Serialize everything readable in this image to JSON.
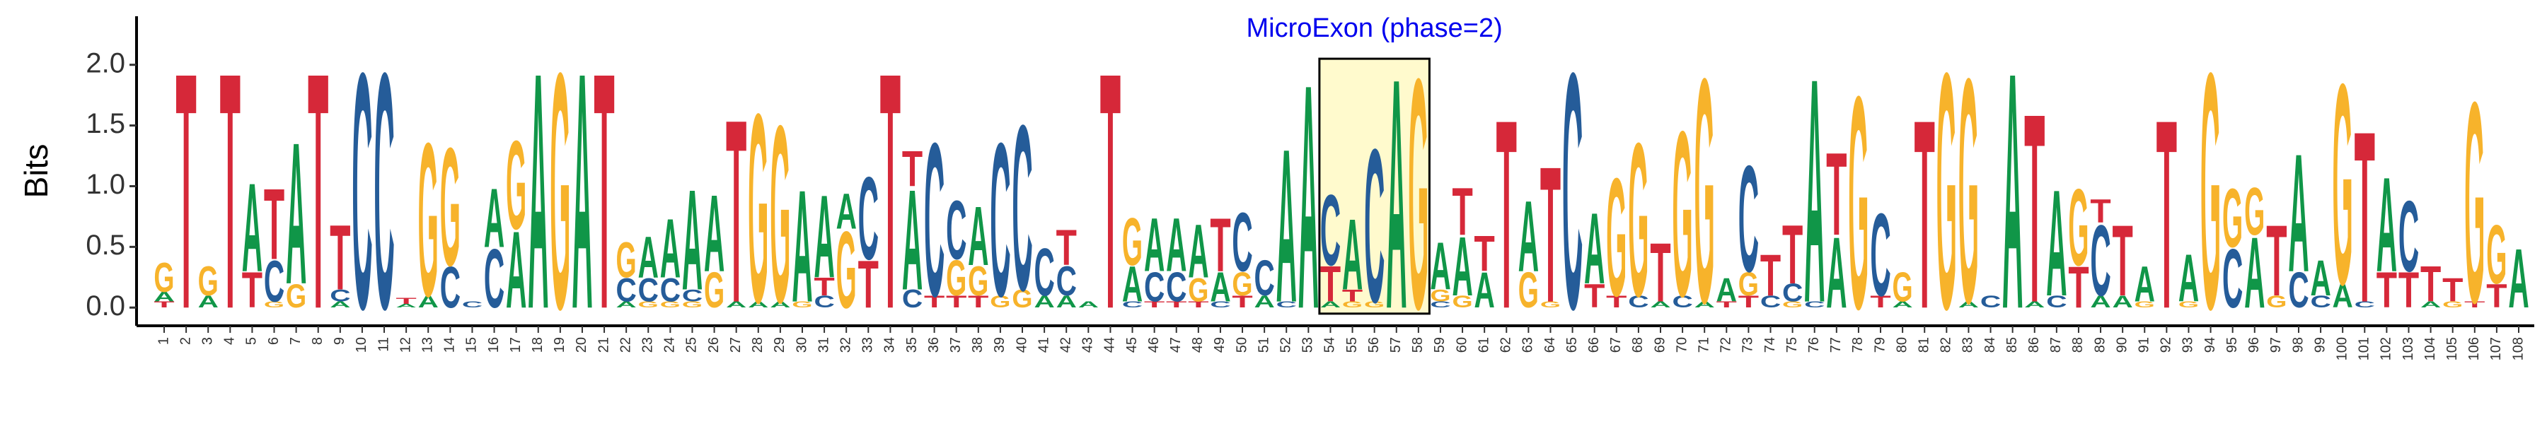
{
  "chart_data": {
    "type": "logo",
    "ylabel": "Bits",
    "ylim": [
      -0.15,
      2.4
    ],
    "yticks": [
      {
        "value": 0,
        "label": "0.0"
      },
      {
        "value": 0.5,
        "label": "0.5"
      },
      {
        "value": 1,
        "label": "1.0"
      },
      {
        "value": 1.5,
        "label": "1.5"
      },
      {
        "value": 2,
        "label": "2.0"
      }
    ],
    "colors": {
      "A": "#109648",
      "C": "#255c99",
      "G": "#f7b32b",
      "T": "#d62839"
    },
    "annotation": {
      "text": "MicroExon (phase=2)",
      "start": 54,
      "end": 58,
      "color": "#0000ee",
      "fill": "#fffacd"
    },
    "categories": [
      "1",
      "2",
      "3",
      "4",
      "5",
      "6",
      "7",
      "8",
      "9",
      "10",
      "11",
      "12",
      "13",
      "14",
      "15",
      "16",
      "17",
      "18",
      "19",
      "20",
      "21",
      "22",
      "23",
      "24",
      "25",
      "26",
      "27",
      "28",
      "29",
      "30",
      "31",
      "32",
      "33",
      "34",
      "35",
      "36",
      "37",
      "38",
      "39",
      "40",
      "41",
      "42",
      "43",
      "44",
      "45",
      "46",
      "47",
      "48",
      "49",
      "50",
      "51",
      "52",
      "53",
      "54",
      "55",
      "56",
      "57",
      "58",
      "59",
      "60",
      "61",
      "62",
      "63",
      "64",
      "65",
      "66",
      "67",
      "68",
      "69",
      "70",
      "71",
      "72",
      "73",
      "74",
      "75",
      "76",
      "77",
      "78",
      "79",
      "80",
      "81",
      "82",
      "83",
      "84",
      "85",
      "86",
      "87",
      "88",
      "89",
      "90",
      "91",
      "92",
      "93",
      "94",
      "95",
      "96",
      "97",
      "98",
      "99",
      "100",
      "101",
      "102",
      "103",
      "104",
      "105",
      "106",
      "107",
      "108"
    ],
    "stacks": [
      [
        [
          "T",
          0.05
        ],
        [
          "A",
          0.08
        ],
        [
          "G",
          0.25
        ]
      ],
      [
        [
          "T",
          2.0
        ]
      ],
      [
        [
          "A",
          0.1
        ],
        [
          "G",
          0.25
        ]
      ],
      [
        [
          "T",
          2.0
        ]
      ],
      [
        [
          "T",
          0.3
        ],
        [
          "A",
          0.75
        ]
      ],
      [
        [
          "G",
          0.05
        ],
        [
          "C",
          0.35
        ],
        [
          "T",
          0.6
        ]
      ],
      [
        [
          "G",
          0.2
        ],
        [
          "A",
          1.2
        ]
      ],
      [
        [
          "T",
          2.0
        ]
      ],
      [
        [
          "A",
          0.05
        ],
        [
          "C",
          0.1
        ],
        [
          "T",
          0.55
        ]
      ],
      [
        [
          "C",
          2.0
        ]
      ],
      [
        [
          "C",
          2.0
        ]
      ],
      [
        [
          "A",
          0.03
        ],
        [
          "T",
          0.05
        ]
      ],
      [
        [
          "A",
          0.1
        ],
        [
          "G",
          1.3
        ]
      ],
      [
        [
          "C",
          0.35
        ],
        [
          "G",
          1.0
        ]
      ],
      [
        [
          "C",
          0.05
        ]
      ],
      [
        [
          "C",
          0.5
        ],
        [
          "A",
          0.5
        ]
      ],
      [
        [
          "A",
          0.65
        ],
        [
          "G",
          0.75
        ]
      ],
      [
        [
          "A",
          2.0
        ]
      ],
      [
        [
          "G",
          2.0
        ]
      ],
      [
        [
          "A",
          2.0
        ]
      ],
      [
        [
          "T",
          2.0
        ]
      ],
      [
        [
          "A",
          0.05
        ],
        [
          "C",
          0.2
        ],
        [
          "G",
          0.3
        ]
      ],
      [
        [
          "G",
          0.05
        ],
        [
          "C",
          0.2
        ],
        [
          "A",
          0.35
        ]
      ],
      [
        [
          "G",
          0.05
        ],
        [
          "C",
          0.2
        ],
        [
          "A",
          0.5
        ]
      ],
      [
        [
          "G",
          0.05
        ],
        [
          "C",
          0.1
        ],
        [
          "A",
          0.85
        ]
      ],
      [
        [
          "G",
          0.3
        ],
        [
          "A",
          0.65
        ]
      ],
      [
        [
          "A",
          0.05
        ],
        [
          "T",
          1.55
        ]
      ],
      [
        [
          "A",
          0.05
        ],
        [
          "G",
          1.6
        ]
      ],
      [
        [
          "A",
          0.05
        ],
        [
          "G",
          1.5
        ]
      ],
      [
        [
          "G",
          0.05
        ],
        [
          "A",
          0.95
        ]
      ],
      [
        [
          "C",
          0.1
        ],
        [
          "T",
          0.15
        ],
        [
          "A",
          0.7
        ]
      ],
      [
        [
          "G",
          0.65
        ],
        [
          "A",
          0.3
        ]
      ],
      [
        [
          "T",
          0.4
        ],
        [
          "C",
          0.7
        ]
      ],
      [
        [
          "T",
          2.0
        ]
      ],
      [
        [
          "C",
          0.15
        ],
        [
          "A",
          0.85
        ],
        [
          "T",
          0.3
        ]
      ],
      [
        [
          "T",
          0.1
        ],
        [
          "C",
          1.3
        ]
      ],
      [
        [
          "T",
          0.1
        ],
        [
          "G",
          0.3
        ],
        [
          "C",
          0.5
        ]
      ],
      [
        [
          "T",
          0.1
        ],
        [
          "G",
          0.25
        ],
        [
          "A",
          0.5
        ]
      ],
      [
        [
          "G",
          0.1
        ],
        [
          "C",
          1.3
        ]
      ],
      [
        [
          "G",
          0.15
        ],
        [
          "C",
          1.4
        ]
      ],
      [
        [
          "A",
          0.1
        ],
        [
          "C",
          0.4
        ]
      ],
      [
        [
          "A",
          0.1
        ],
        [
          "C",
          0.25
        ],
        [
          "T",
          0.3
        ]
      ],
      [
        [
          "A",
          0.05
        ]
      ],
      [
        [
          "T",
          2.0
        ]
      ],
      [
        [
          "C",
          0.05
        ],
        [
          "A",
          0.3
        ],
        [
          "G",
          0.4
        ]
      ],
      [
        [
          "T",
          0.05
        ],
        [
          "C",
          0.25
        ],
        [
          "A",
          0.45
        ]
      ],
      [
        [
          "T",
          0.05
        ],
        [
          "C",
          0.25
        ],
        [
          "A",
          0.45
        ]
      ],
      [
        [
          "T",
          0.05
        ],
        [
          "G",
          0.2
        ],
        [
          "A",
          0.45
        ]
      ],
      [
        [
          "C",
          0.05
        ],
        [
          "A",
          0.25
        ],
        [
          "T",
          0.45
        ]
      ],
      [
        [
          "T",
          0.1
        ],
        [
          "G",
          0.2
        ],
        [
          "C",
          0.5
        ]
      ],
      [
        [
          "A",
          0.1
        ],
        [
          "C",
          0.3
        ]
      ],
      [
        [
          "C",
          0.05
        ],
        [
          "A",
          1.3
        ]
      ],
      [
        [
          "A",
          1.9
        ]
      ],
      [
        [
          "A",
          0.05
        ],
        [
          "T",
          0.3
        ],
        [
          "C",
          0.6
        ]
      ],
      [
        [
          "G",
          0.05
        ],
        [
          "T",
          0.1
        ],
        [
          "A",
          0.6
        ]
      ],
      [
        [
          "G",
          0.05
        ],
        [
          "C",
          1.3
        ]
      ],
      [
        [
          "A",
          1.95
        ]
      ],
      [
        [
          "G",
          1.95
        ]
      ],
      [
        [
          "C",
          0.05
        ],
        [
          "G",
          0.1
        ],
        [
          "A",
          0.4
        ]
      ],
      [
        [
          "G",
          0.1
        ],
        [
          "A",
          0.5
        ],
        [
          "T",
          0.4
        ]
      ],
      [
        [
          "A",
          0.3
        ],
        [
          "T",
          0.3
        ]
      ],
      [
        [
          "T",
          1.6
        ]
      ],
      [
        [
          "G",
          0.3
        ],
        [
          "A",
          0.6
        ]
      ],
      [
        [
          "G",
          0.05
        ],
        [
          "T",
          1.15
        ]
      ],
      [
        [
          "C",
          2.0
        ]
      ],
      [
        [
          "T",
          0.2
        ],
        [
          "A",
          0.6
        ]
      ],
      [
        [
          "T",
          0.1
        ],
        [
          "G",
          1.0
        ]
      ],
      [
        [
          "C",
          0.1
        ],
        [
          "G",
          1.3
        ]
      ],
      [
        [
          "A",
          0.05
        ],
        [
          "T",
          0.5
        ]
      ],
      [
        [
          "C",
          0.1
        ],
        [
          "G",
          1.4
        ]
      ],
      [
        [
          "A",
          0.05
        ],
        [
          "G",
          1.9
        ]
      ],
      [
        [
          "T",
          0.05
        ],
        [
          "A",
          0.2
        ]
      ],
      [
        [
          "T",
          0.1
        ],
        [
          "G",
          0.2
        ],
        [
          "C",
          0.9
        ]
      ],
      [
        [
          "C",
          0.1
        ],
        [
          "T",
          0.35
        ]
      ],
      [
        [
          "G",
          0.05
        ],
        [
          "C",
          0.15
        ],
        [
          "T",
          0.5
        ]
      ],
      [
        [
          "C",
          0.05
        ],
        [
          "A",
          1.9
        ]
      ],
      [
        [
          "A",
          0.6
        ],
        [
          "T",
          0.7
        ]
      ],
      [
        [
          "G",
          1.8
        ]
      ],
      [
        [
          "T",
          0.1
        ],
        [
          "C",
          0.7
        ]
      ],
      [
        [
          "A",
          0.05
        ],
        [
          "G",
          0.25
        ]
      ],
      [
        [
          "T",
          1.6
        ]
      ],
      [
        [
          "G",
          2.0
        ]
      ],
      [
        [
          "A",
          0.05
        ],
        [
          "G",
          1.9
        ]
      ],
      [
        [
          "C",
          0.1
        ]
      ],
      [
        [
          "A",
          2.0
        ]
      ],
      [
        [
          "A",
          0.05
        ],
        [
          "T",
          1.6
        ]
      ],
      [
        [
          "C",
          0.1
        ],
        [
          "A",
          0.9
        ]
      ],
      [
        [
          "T",
          0.35
        ],
        [
          "G",
          0.65
        ]
      ],
      [
        [
          "A",
          0.1
        ],
        [
          "C",
          0.6
        ],
        [
          "T",
          0.2
        ]
      ],
      [
        [
          "A",
          0.1
        ],
        [
          "T",
          0.6
        ]
      ],
      [
        [
          "G",
          0.05
        ],
        [
          "A",
          0.3
        ]
      ],
      [
        [
          "T",
          1.6
        ]
      ],
      [
        [
          "G",
          0.05
        ],
        [
          "A",
          0.4
        ]
      ],
      [
        [
          "G",
          2.0
        ]
      ],
      [
        [
          "C",
          0.5
        ],
        [
          "G",
          0.5
        ]
      ],
      [
        [
          "A",
          0.6
        ],
        [
          "G",
          0.4
        ]
      ],
      [
        [
          "G",
          0.1
        ],
        [
          "T",
          0.6
        ]
      ],
      [
        [
          "C",
          0.3
        ],
        [
          "A",
          1.0
        ]
      ],
      [
        [
          "C",
          0.1
        ],
        [
          "A",
          0.3
        ]
      ],
      [
        [
          "A",
          0.2
        ],
        [
          "G",
          1.7
        ]
      ],
      [
        [
          "C",
          0.05
        ],
        [
          "T",
          1.45
        ]
      ],
      [
        [
          "T",
          0.3
        ],
        [
          "A",
          0.8
        ]
      ],
      [
        [
          "T",
          0.3
        ],
        [
          "C",
          0.6
        ]
      ],
      [
        [
          "A",
          0.05
        ],
        [
          "T",
          0.3
        ]
      ],
      [
        [
          "G",
          0.05
        ],
        [
          "T",
          0.2
        ]
      ],
      [
        [
          "T",
          0.05
        ],
        [
          "G",
          1.7
        ]
      ],
      [
        [
          "T",
          0.2
        ],
        [
          "G",
          0.5
        ]
      ],
      [
        [
          "A",
          0.5
        ]
      ]
    ]
  }
}
